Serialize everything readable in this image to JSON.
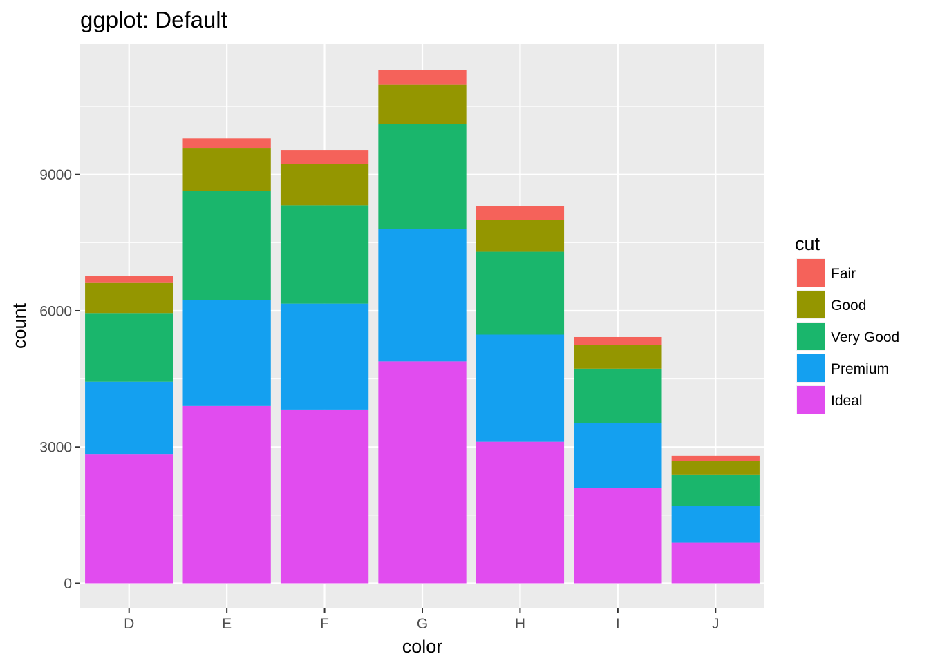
{
  "chart_data": {
    "type": "bar",
    "stacked": true,
    "title": "ggplot: Default",
    "xlabel": "color",
    "ylabel": "count",
    "categories": [
      "D",
      "E",
      "F",
      "G",
      "H",
      "I",
      "J"
    ],
    "yticks": [
      0,
      3000,
      6000,
      9000
    ],
    "ylim": [
      -540,
      11870
    ],
    "grid": true,
    "legend": {
      "title": "cut",
      "position": "right"
    },
    "series": [
      {
        "name": "Ideal",
        "color": "#E14CEF",
        "values": [
          2834,
          3903,
          3826,
          4884,
          3115,
          2093,
          896
        ]
      },
      {
        "name": "Premium",
        "color": "#14A0F0",
        "values": [
          1603,
          2337,
          2331,
          2924,
          2360,
          1428,
          808
        ]
      },
      {
        "name": "Very Good",
        "color": "#1AB66C",
        "values": [
          1513,
          2400,
          2164,
          2299,
          1824,
          1204,
          678
        ]
      },
      {
        "name": "Good",
        "color": "#949600",
        "values": [
          662,
          933,
          909,
          871,
          702,
          522,
          307
        ]
      },
      {
        "name": "Fair",
        "color": "#F5625A",
        "values": [
          163,
          224,
          312,
          314,
          303,
          175,
          119
        ]
      }
    ],
    "legend_order": [
      "Fair",
      "Good",
      "Very Good",
      "Premium",
      "Ideal"
    ]
  }
}
